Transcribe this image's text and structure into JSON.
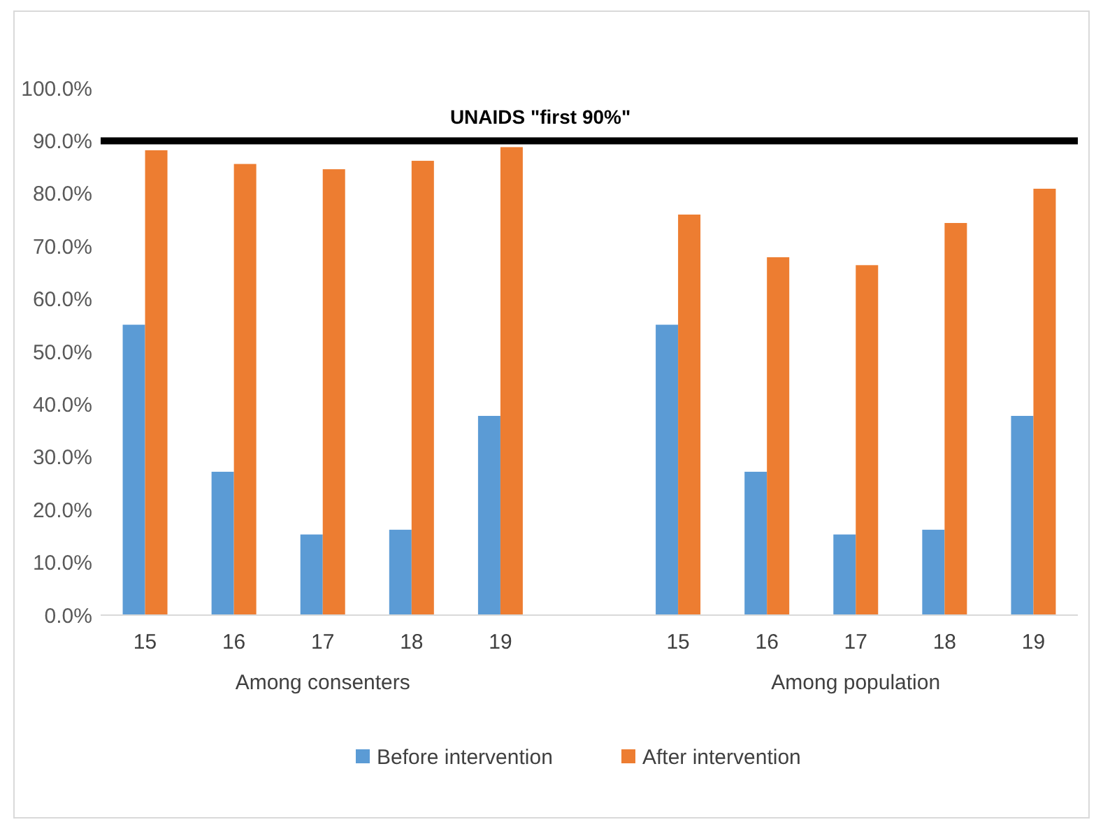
{
  "chart_data": {
    "type": "bar",
    "categories": [
      "15",
      "16",
      "17",
      "18",
      "19",
      null,
      "15",
      "16",
      "17",
      "18",
      "19"
    ],
    "series": [
      {
        "name": "Before intervention",
        "color": "#5b9bd5",
        "values": [
          55.1,
          27.2,
          15.3,
          16.2,
          37.8,
          null,
          55.1,
          27.2,
          15.3,
          16.2,
          37.8
        ]
      },
      {
        "name": "After intervention",
        "color": "#ed7d31",
        "values": [
          88.2,
          85.6,
          84.6,
          86.2,
          88.8,
          null,
          76.0,
          67.9,
          66.4,
          74.4,
          80.9
        ]
      }
    ],
    "ylim": [
      0,
      100
    ],
    "yticks": [
      {
        "value": 0,
        "label": "0.0%"
      },
      {
        "value": 10,
        "label": "10.0%"
      },
      {
        "value": 20,
        "label": "20.0%"
      },
      {
        "value": 30,
        "label": "30.0%"
      },
      {
        "value": 40,
        "label": "40.0%"
      },
      {
        "value": 50,
        "label": "50.0%"
      },
      {
        "value": 60,
        "label": "60.0%"
      },
      {
        "value": 70,
        "label": "70.0%"
      },
      {
        "value": 80,
        "label": "80.0%"
      },
      {
        "value": 90,
        "label": "90.0%"
      },
      {
        "value": 100,
        "label": "100.0%"
      }
    ],
    "ref_lines": [
      {
        "axis": "y",
        "value": 90,
        "label": "UNAIDS \"first 90%\"",
        "color": "#000000"
      }
    ],
    "annotations": [
      "Among consenters",
      "Among population"
    ],
    "grid": false,
    "legend": "bottom"
  }
}
